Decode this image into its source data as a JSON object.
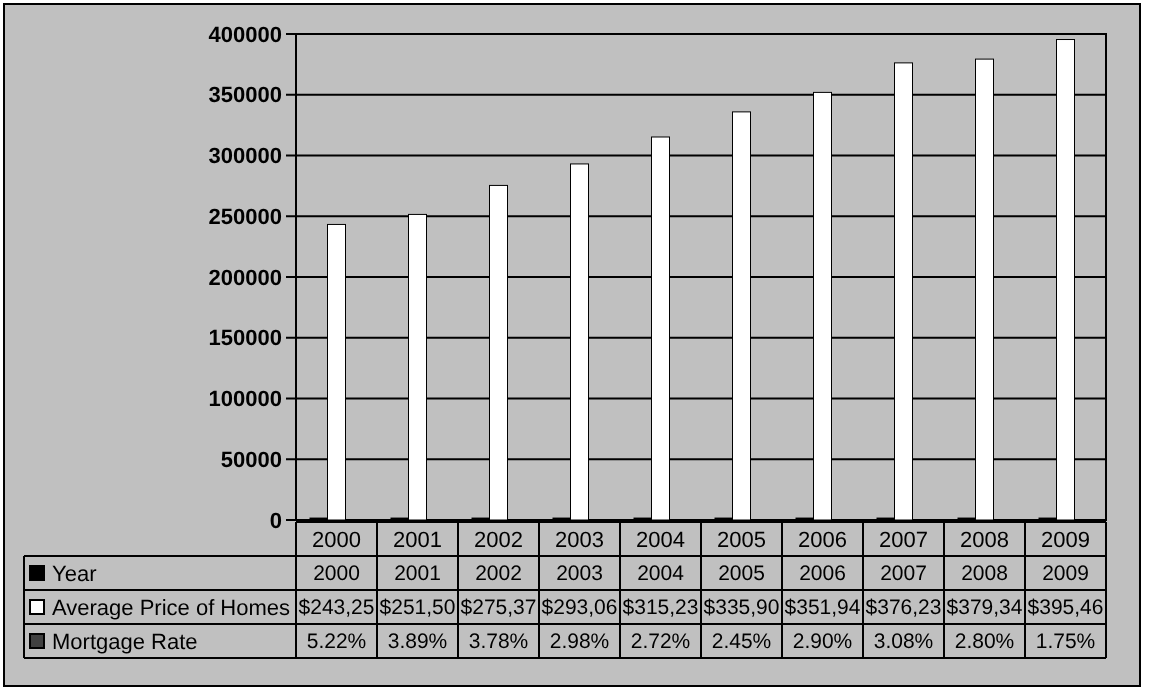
{
  "chart_data": {
    "type": "bar",
    "categories": [
      "2000",
      "2001",
      "2002",
      "2003",
      "2004",
      "2005",
      "2006",
      "2007",
      "2008",
      "2009"
    ],
    "series": [
      {
        "name": "Year",
        "color": "#000000",
        "values": [
          2000,
          2001,
          2002,
          2003,
          2004,
          2005,
          2006,
          2007,
          2008,
          2009
        ],
        "value_labels": [
          "2000",
          "2001",
          "2002",
          "2003",
          "2004",
          "2005",
          "2006",
          "2007",
          "2008",
          "2009"
        ]
      },
      {
        "name": "Average Price of Homes",
        "color": "#ffffff",
        "values": [
          243250,
          251500,
          275370,
          293060,
          315230,
          335900,
          351940,
          376230,
          379340,
          395460
        ]
      },
      {
        "name": "Mortgage Rate",
        "color": "#404040",
        "values": [
          0.0522,
          0.0389,
          0.0378,
          0.0298,
          0.0272,
          0.0245,
          0.029,
          0.0308,
          0.028,
          0.0175
        ],
        "value_labels": [
          "5.22%",
          "3.89%",
          "3.78%",
          "2.98%",
          "2.72%",
          "2.45%",
          "2.90%",
          "3.08%",
          "2.80%",
          "1.75%"
        ]
      }
    ],
    "ylim": [
      0,
      400000
    ],
    "yticks": [
      0,
      50000,
      100000,
      150000,
      200000,
      250000,
      300000,
      350000,
      400000
    ],
    "grid": "y",
    "legend": "bottom left",
    "annotations": [
      "$243,25",
      "$251,50",
      "$275,37",
      "$293,06",
      "$315,23",
      "$335,90",
      "$351,94",
      "$376,23",
      "$379,34",
      "$395,46"
    ]
  }
}
